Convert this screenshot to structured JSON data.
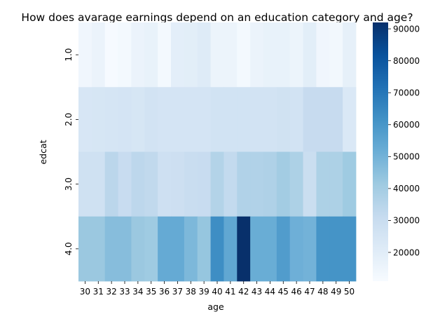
{
  "chart_data": {
    "type": "heatmap",
    "title": "How does avarage earnings depend on an education category and age?",
    "xlabel": "age",
    "ylabel": "edcat",
    "x": [
      "30",
      "31",
      "32",
      "33",
      "34",
      "35",
      "36",
      "37",
      "38",
      "39",
      "40",
      "41",
      "42",
      "43",
      "44",
      "45",
      "46",
      "47",
      "48",
      "49",
      "50"
    ],
    "y": [
      "1.0",
      "2.0",
      "3.0",
      "4.0"
    ],
    "values": [
      [
        14000,
        16000,
        11500,
        12500,
        16000,
        17000,
        12500,
        19000,
        19500,
        21000,
        15500,
        15500,
        12500,
        16000,
        17000,
        17000,
        15500,
        19500,
        14000,
        13000,
        18000
      ],
      [
        24000,
        24500,
        25000,
        25500,
        24500,
        26000,
        25500,
        25500,
        25500,
        25500,
        26500,
        26500,
        26500,
        26000,
        26000,
        27000,
        26000,
        31000,
        31000,
        31000,
        23000
      ],
      [
        27500,
        27500,
        34000,
        30500,
        33500,
        32500,
        28000,
        28500,
        30000,
        30500,
        36000,
        32000,
        36500,
        36500,
        37000,
        40000,
        37500,
        29500,
        37500,
        37500,
        41000
      ],
      [
        42000,
        42000,
        46000,
        46000,
        42000,
        41000,
        53000,
        53000,
        48000,
        43000,
        63000,
        54000,
        92000,
        52000,
        52000,
        58000,
        51000,
        50000,
        61000,
        61000,
        61000
      ]
    ],
    "colorbar": {
      "min": 11000,
      "max": 92000,
      "ticks": [
        20000,
        30000,
        40000,
        50000,
        60000,
        70000,
        80000,
        90000
      ],
      "tick_labels": [
        "20000",
        "30000",
        "40000",
        "50000",
        "60000",
        "70000",
        "80000",
        "90000"
      ]
    },
    "colormap": [
      "#f7fbff",
      "#deebf7",
      "#c6dbef",
      "#9ecae1",
      "#6baed6",
      "#4292c6",
      "#2171b5",
      "#08519c",
      "#08306b"
    ]
  }
}
